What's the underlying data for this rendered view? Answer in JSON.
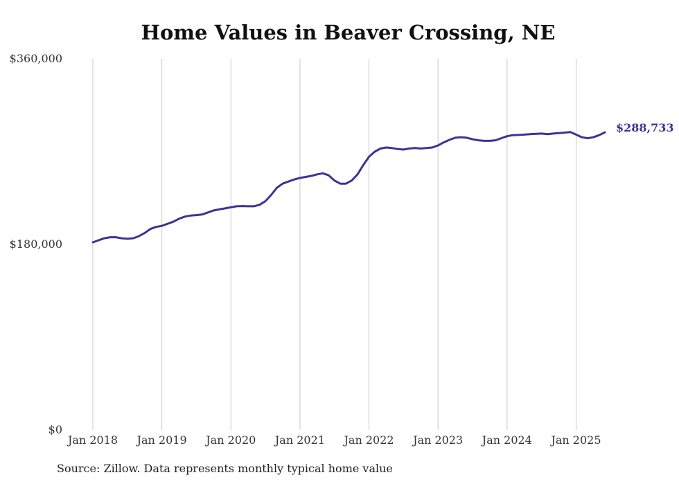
{
  "chart_data": {
    "type": "line",
    "title": "Home Values in Beaver Crossing, NE",
    "source": "Source: Zillow. Data represents monthly typical home value",
    "xlabel": "",
    "ylabel": "",
    "ylim": [
      0,
      360000
    ],
    "y_ticks": [
      {
        "value": 0,
        "label": "$0"
      },
      {
        "value": 180000,
        "label": "$180,000"
      },
      {
        "value": 360000,
        "label": "$360,000"
      }
    ],
    "x_ticks": [
      {
        "index": 0,
        "label": "Jan 2018"
      },
      {
        "index": 12,
        "label": "Jan 2019"
      },
      {
        "index": 24,
        "label": "Jan 2020"
      },
      {
        "index": 36,
        "label": "Jan 2021"
      },
      {
        "index": 48,
        "label": "Jan 2022"
      },
      {
        "index": 60,
        "label": "Jan 2023"
      },
      {
        "index": 72,
        "label": "Jan 2024"
      },
      {
        "index": 84,
        "label": "Jan 2025"
      }
    ],
    "series": [
      {
        "name": "Typical home value",
        "color": "#3a3494",
        "end_label": "$288,733",
        "values": [
          182000,
          184000,
          186000,
          187000,
          187000,
          186000,
          185500,
          186000,
          188000,
          191000,
          195000,
          197000,
          198000,
          200000,
          202000,
          205000,
          207000,
          208000,
          208500,
          209000,
          211000,
          213000,
          214000,
          215000,
          216000,
          217000,
          217200,
          217000,
          217000,
          218500,
          222000,
          228000,
          235000,
          239000,
          241000,
          243000,
          244500,
          245500,
          246500,
          248000,
          249000,
          247000,
          242000,
          239000,
          239000,
          242000,
          248000,
          257000,
          265000,
          270000,
          273000,
          274000,
          273500,
          272500,
          272000,
          273000,
          273500,
          273000,
          273500,
          274000,
          276000,
          279000,
          281500,
          283500,
          284000,
          283500,
          282000,
          281000,
          280500,
          280500,
          281000,
          283000,
          285000,
          286000,
          286200,
          286500,
          287000,
          287300,
          287500,
          287000,
          287500,
          288000,
          288500,
          289000,
          286500,
          284000,
          283000,
          284000,
          286000,
          288733
        ]
      }
    ]
  }
}
